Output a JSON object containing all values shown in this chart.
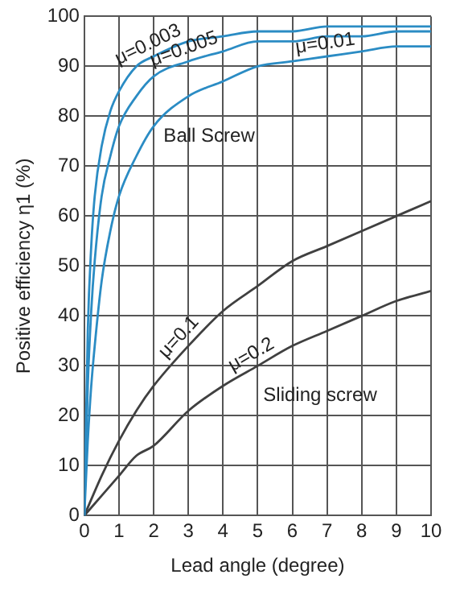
{
  "chart_data": {
    "type": "line",
    "xlabel": "Lead angle (degree)",
    "ylabel": "Positive efficiency η1 (%)",
    "x": [
      0,
      0.1,
      0.2,
      0.3,
      0.5,
      0.75,
      1,
      1.5,
      2,
      3,
      4,
      5,
      6,
      7,
      8,
      9,
      10
    ],
    "series": [
      {
        "color": "#2b8cc4",
        "values": [
          0,
          37,
          54,
          64,
          74,
          81,
          85,
          90,
          92,
          95,
          96,
          97,
          97,
          98,
          98,
          98,
          98
        ]
      },
      {
        "color": "#2b8cc4",
        "values": [
          0,
          26,
          41,
          51,
          64,
          72,
          78,
          84,
          88,
          91,
          93,
          95,
          95,
          96,
          96,
          97,
          97
        ]
      },
      {
        "color": "#2b8cc4",
        "values": [
          0,
          15,
          26,
          34,
          47,
          57,
          64,
          72,
          78,
          84,
          87,
          90,
          91,
          92,
          93,
          94,
          94
        ]
      },
      {
        "color": "#404040",
        "x": [
          0,
          0.5,
          1,
          1.5,
          2,
          3,
          4,
          5,
          6,
          7,
          8,
          9,
          10
        ],
        "values": [
          0,
          8,
          15,
          21,
          26,
          34,
          41,
          46,
          51,
          54,
          57,
          60,
          63
        ]
      },
      {
        "color": "#404040",
        "x": [
          0,
          0.5,
          1,
          1.5,
          2,
          3,
          4,
          5,
          6,
          7,
          8,
          9,
          10
        ],
        "values": [
          0,
          4,
          8,
          12,
          14,
          21,
          26,
          30,
          34,
          37,
          40,
          43,
          45
        ]
      }
    ],
    "xlim": [
      0,
      10
    ],
    "xticks": [
      0,
      1,
      2,
      3,
      4,
      5,
      6,
      7,
      8,
      9,
      10
    ],
    "ylim": [
      0,
      100
    ],
    "yticks": [
      0,
      10,
      20,
      30,
      40,
      50,
      60,
      70,
      80,
      90,
      100
    ],
    "grid": true,
    "marker": "none",
    "line_style": "solid",
    "legend": false,
    "tick_labels": "xy",
    "annotations": [
      {
        "text": "μ=0.003",
        "x": 2,
        "y": 92
      },
      {
        "text": "μ=0.005",
        "x": 3,
        "y": 91
      },
      {
        "text": "μ=0.01",
        "x": 7,
        "y": 92
      },
      "Ball Screw",
      {
        "text": "μ=0.1",
        "x": 3,
        "y": 34
      },
      {
        "text": "μ=0.2",
        "x": 5,
        "y": 30
      },
      "Sliding screw"
    ]
  }
}
